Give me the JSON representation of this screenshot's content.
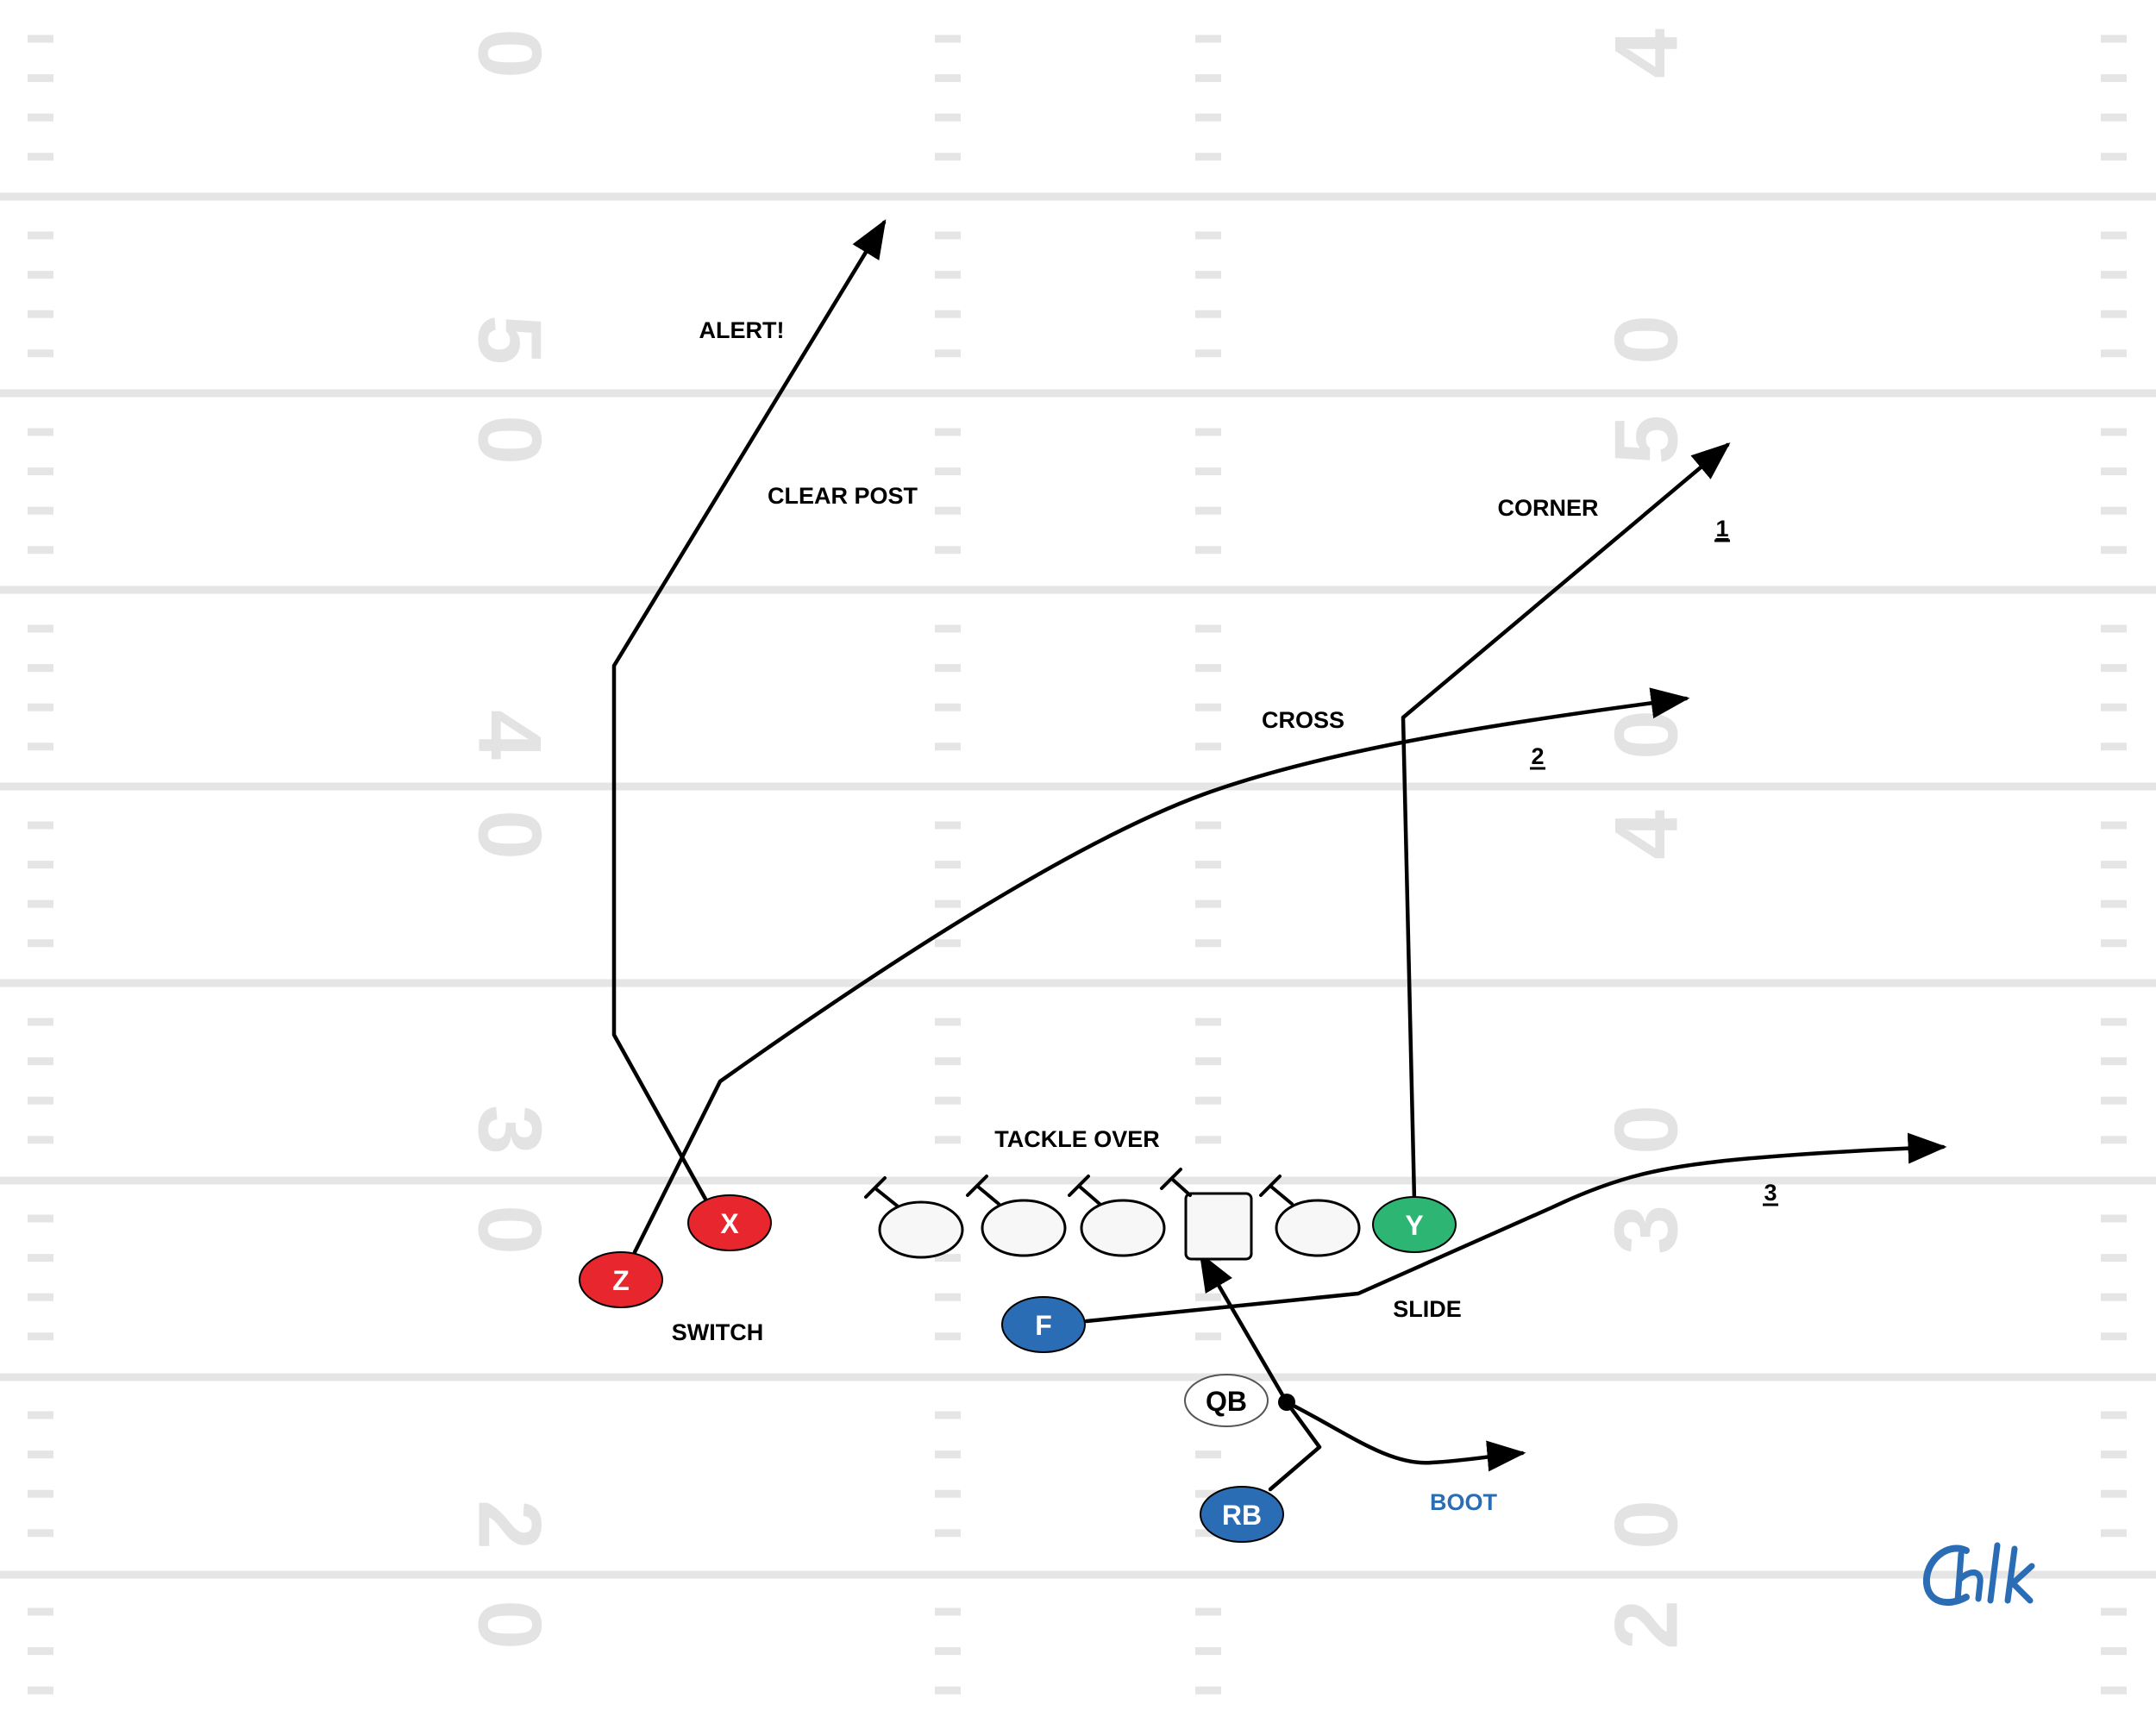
{
  "colors": {
    "field_background": "#ffffff",
    "yard_lines": "#e5e5e5",
    "yard_numbers": "#e3e3e3",
    "route": "#000000",
    "receiver_red": "#e8262d",
    "receiver_green": "#2db574",
    "back_blue": "#2b6db4",
    "boot_label": "#2b6db4",
    "logo": "#2b6db4"
  },
  "yard_numbers": {
    "left": [
      "0",
      "5",
      "0",
      "4",
      "0",
      "3",
      "0",
      "2",
      "0"
    ],
    "right": [
      "4",
      "0",
      "5",
      "0",
      "4",
      "0",
      "3",
      "0",
      "2"
    ]
  },
  "players": {
    "x": {
      "label": "X",
      "color": "receiver_red"
    },
    "z": {
      "label": "Z",
      "color": "receiver_red"
    },
    "y": {
      "label": "Y",
      "color": "receiver_green"
    },
    "f": {
      "label": "F",
      "color": "back_blue"
    },
    "qb": {
      "label": "QB",
      "color": "white"
    },
    "rb": {
      "label": "RB",
      "color": "back_blue"
    }
  },
  "labels": {
    "alert": "ALERT!",
    "clear_post": "CLEAR POST",
    "corner": "CORNER",
    "cross": "CROSS",
    "tackle_over": "TACKLE OVER",
    "switch": "SWITCH",
    "slide": "SLIDE",
    "boot": "BOOT"
  },
  "progression": {
    "first": "1",
    "second": "2",
    "third": "3"
  },
  "logo": {
    "icon": "chalk-logo-icon"
  }
}
